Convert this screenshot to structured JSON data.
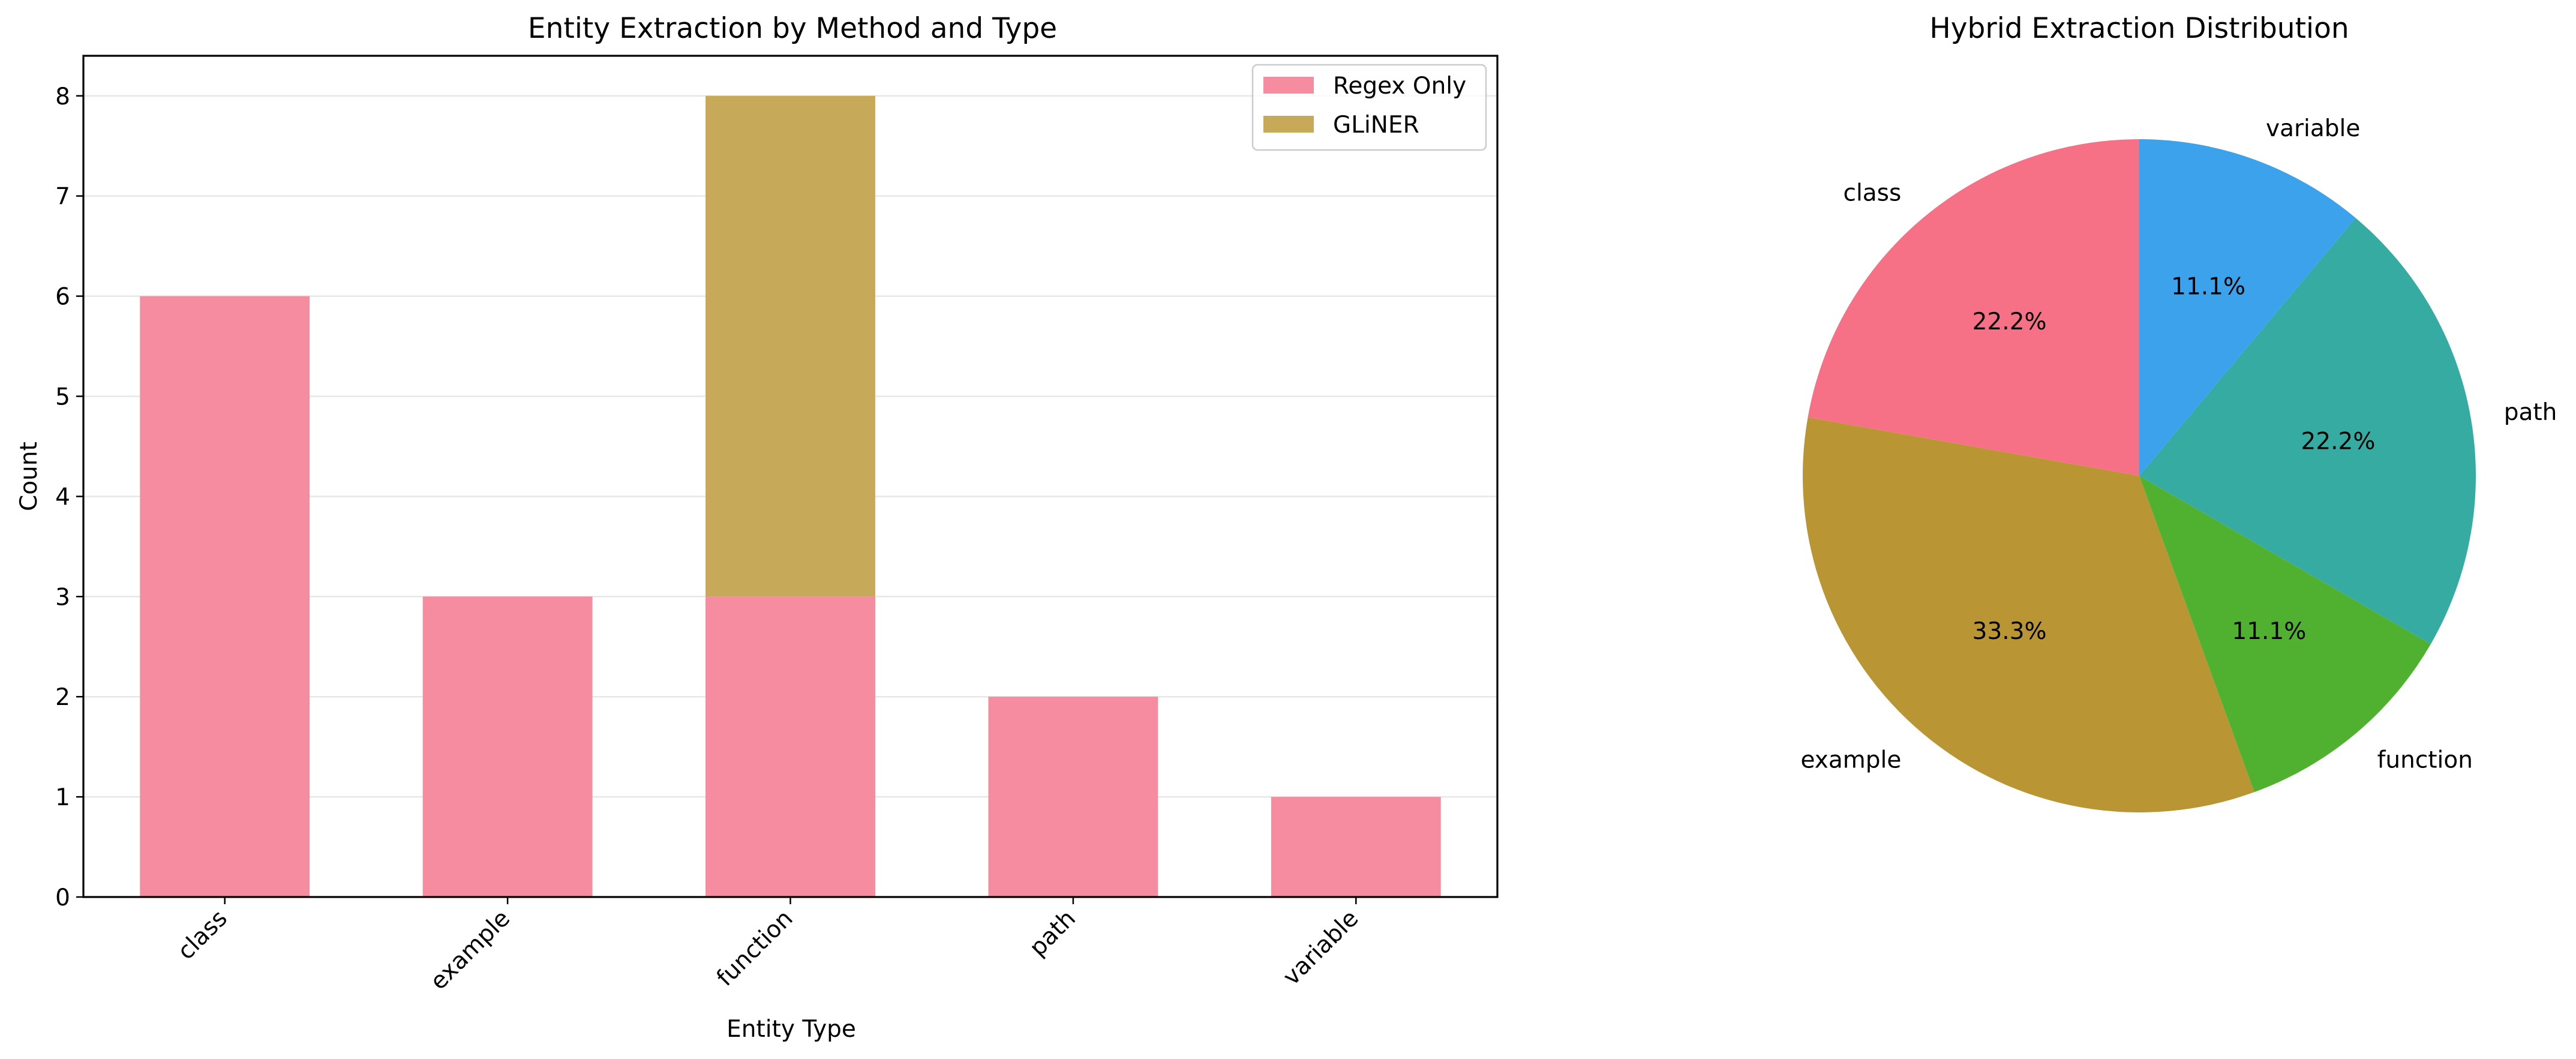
{
  "chart_data": [
    {
      "type": "bar",
      "stacked": true,
      "title": "Entity Extraction by Method and Type",
      "xlabel": "Entity Type",
      "ylabel": "Count",
      "categories": [
        "class",
        "example",
        "function",
        "path",
        "variable"
      ],
      "series": [
        {
          "name": "Regex Only",
          "values": [
            6,
            3,
            3,
            2,
            1
          ],
          "color": "#f68c9f"
        },
        {
          "name": "GLiNER",
          "values": [
            0,
            0,
            5,
            0,
            0
          ],
          "color": "#c6aa5a"
        }
      ],
      "ylim": [
        0,
        8.4
      ],
      "yticks": [
        0,
        1,
        2,
        3,
        4,
        5,
        6,
        7,
        8
      ],
      "grid": "y",
      "legend": "top-right"
    },
    {
      "type": "pie",
      "title": "Hybrid Extraction Distribution",
      "labels": [
        "class",
        "example",
        "function",
        "path",
        "variable"
      ],
      "values": [
        22.2,
        33.3,
        11.1,
        22.2,
        11.1
      ],
      "value_labels": [
        "22.2%",
        "33.3%",
        "11.1%",
        "22.2%",
        "11.1%"
      ],
      "colors": [
        "#f67186",
        "#b99633",
        "#50b130",
        "#35aba2",
        "#3ba2eb"
      ],
      "start_angle": 90,
      "direction": "counterclockwise"
    }
  ]
}
